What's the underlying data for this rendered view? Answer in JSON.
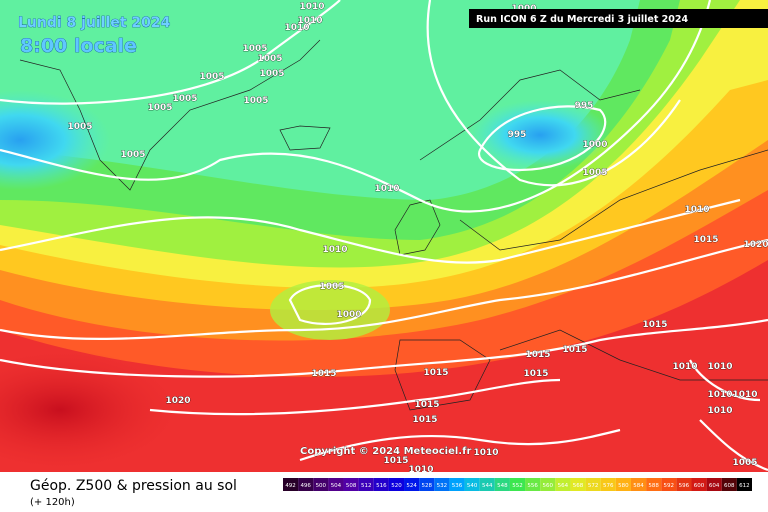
{
  "header": {
    "date": "Lundi 8 juillet 2024",
    "time": "8:00 locale",
    "run": "Run ICON 6 Z du Mercredi 3 juillet 2024"
  },
  "copyright": "Copyright © 2024 Meteociel.fr",
  "footer": {
    "title": "Géop. Z500 & pression au sol",
    "lead": "(+ 120h)"
  },
  "scale": [
    492,
    496,
    500,
    504,
    508,
    512,
    516,
    520,
    524,
    528,
    532,
    536,
    540,
    544,
    548,
    552,
    556,
    560,
    564,
    568,
    572,
    576,
    580,
    584,
    588,
    592,
    596,
    600,
    604,
    608,
    612
  ],
  "isobar_labels": [
    1000,
    1010,
    1010,
    1010,
    1005,
    1005,
    1005,
    1005,
    1005,
    1005,
    1005,
    1005,
    1005,
    995,
    995,
    1000,
    1005,
    1010,
    1010,
    1015,
    1020,
    1010,
    1005,
    1000,
    1015,
    1015,
    1015,
    1010,
    1010,
    1015,
    1015,
    1015,
    1010,
    1010,
    1020,
    1015,
    1015,
    1010,
    1010,
    1015,
    1010,
    1005
  ]
}
